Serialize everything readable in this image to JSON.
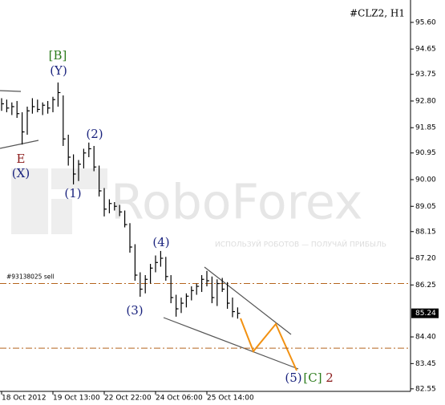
{
  "chart_data": {
    "type": "ohlc",
    "title": "#CLZ2, H1",
    "watermark": {
      "brand": "RoboForex",
      "slogan": "ИСПОЛЬЗУЙ РОБОТОВ — ПОЛУЧАЙ ПРИБЫЛЬ"
    },
    "categories": [
      "18 Oct 2012",
      null,
      null,
      null,
      null,
      null,
      null,
      null,
      null,
      null,
      "19 Oct 13:00",
      null,
      null,
      null,
      null,
      null,
      null,
      null,
      null,
      null,
      "22 Oct 22:00",
      null,
      null,
      null,
      null,
      null,
      null,
      null,
      null,
      null,
      "24 Oct 06:00",
      null,
      null,
      null,
      null,
      null,
      null,
      null,
      null,
      null,
      "25 Oct 14:00",
      null,
      null,
      null,
      null,
      null,
      null
    ],
    "high": [
      92.9,
      92.85,
      92.75,
      92.8,
      92.4,
      92.6,
      92.9,
      92.85,
      92.75,
      92.8,
      92.95,
      93.46,
      93.0,
      91.6,
      90.9,
      90.7,
      91.1,
      91.32,
      91.2,
      90.5,
      89.7,
      89.3,
      89.2,
      89.1,
      88.9,
      88.45,
      87.7,
      86.7,
      86.6,
      87.0,
      87.3,
      87.46,
      87.25,
      86.6,
      85.9,
      85.8,
      85.95,
      86.2,
      86.3,
      86.6,
      86.75,
      86.55,
      86.45,
      86.5,
      86.35,
      85.8,
      85.45
    ],
    "low": [
      92.45,
      92.4,
      92.3,
      92.2,
      91.25,
      91.6,
      92.35,
      92.4,
      92.3,
      92.35,
      92.4,
      92.6,
      91.2,
      90.5,
      89.83,
      89.95,
      90.4,
      90.8,
      90.3,
      89.4,
      88.69,
      88.8,
      88.9,
      88.7,
      88.3,
      87.4,
      86.4,
      85.83,
      85.95,
      86.3,
      86.7,
      86.9,
      86.4,
      85.6,
      85.12,
      85.25,
      85.45,
      85.7,
      85.9,
      86.0,
      86.2,
      85.6,
      85.5,
      86.0,
      85.4,
      85.1,
      85.05
    ],
    "close": [
      92.7,
      92.55,
      92.6,
      92.35,
      91.7,
      92.45,
      92.6,
      92.5,
      92.65,
      92.55,
      92.85,
      93.1,
      91.45,
      90.8,
      90.2,
      90.55,
      90.95,
      91.1,
      90.45,
      89.6,
      88.95,
      89.15,
      89.05,
      88.85,
      88.4,
      87.6,
      86.6,
      86.1,
      86.45,
      86.85,
      87.05,
      87.2,
      86.55,
      85.8,
      85.4,
      85.6,
      85.85,
      86.05,
      86.2,
      86.45,
      86.4,
      85.8,
      86.3,
      86.1,
      85.6,
      85.3,
      85.24
    ],
    "color": "#000000",
    "ylim": [
      82.46,
      96.34
    ],
    "yticks": [
      {
        "value": 95.6,
        "label": "95.60"
      },
      94.65,
      93.75,
      {
        "value": 92.8,
        "label": "92.80"
      },
      91.85,
      90.95,
      {
        "value": 90,
        "label": "90.00"
      },
      89.05,
      88.15,
      {
        "value": 87.2,
        "label": "87.20"
      },
      86.25,
      {
        "value": 84.4,
        "label": "84.40"
      },
      83.45,
      82.55
    ],
    "levels": [
      {
        "value": 86.3,
        "label": "#93138025 sell"
      },
      {
        "value": 84.0
      }
    ],
    "level_color": "#b5651d",
    "annotations": [
      {
        "text": "[B]",
        "color": "#2e7d1e"
      },
      {
        "text": "(Y)",
        "color": "#1a237e"
      },
      {
        "text": "E",
        "color": "#8b1a1a"
      },
      {
        "text": "(X)",
        "color": "#1a237e"
      },
      {
        "text": "(1)",
        "color": "#1a237e"
      },
      {
        "text": "(2)",
        "color": "#1a237e"
      },
      {
        "text": "(3)",
        "color": "#1a237e"
      },
      {
        "text": "(4)",
        "color": "#1a237e"
      },
      {
        "text": "(5)",
        "color": "#1a237e"
      },
      {
        "text": "[C]",
        "color": "#2e7d1e"
      },
      {
        "text": "2",
        "color": "#8b1a1a"
      }
    ]
  }
}
